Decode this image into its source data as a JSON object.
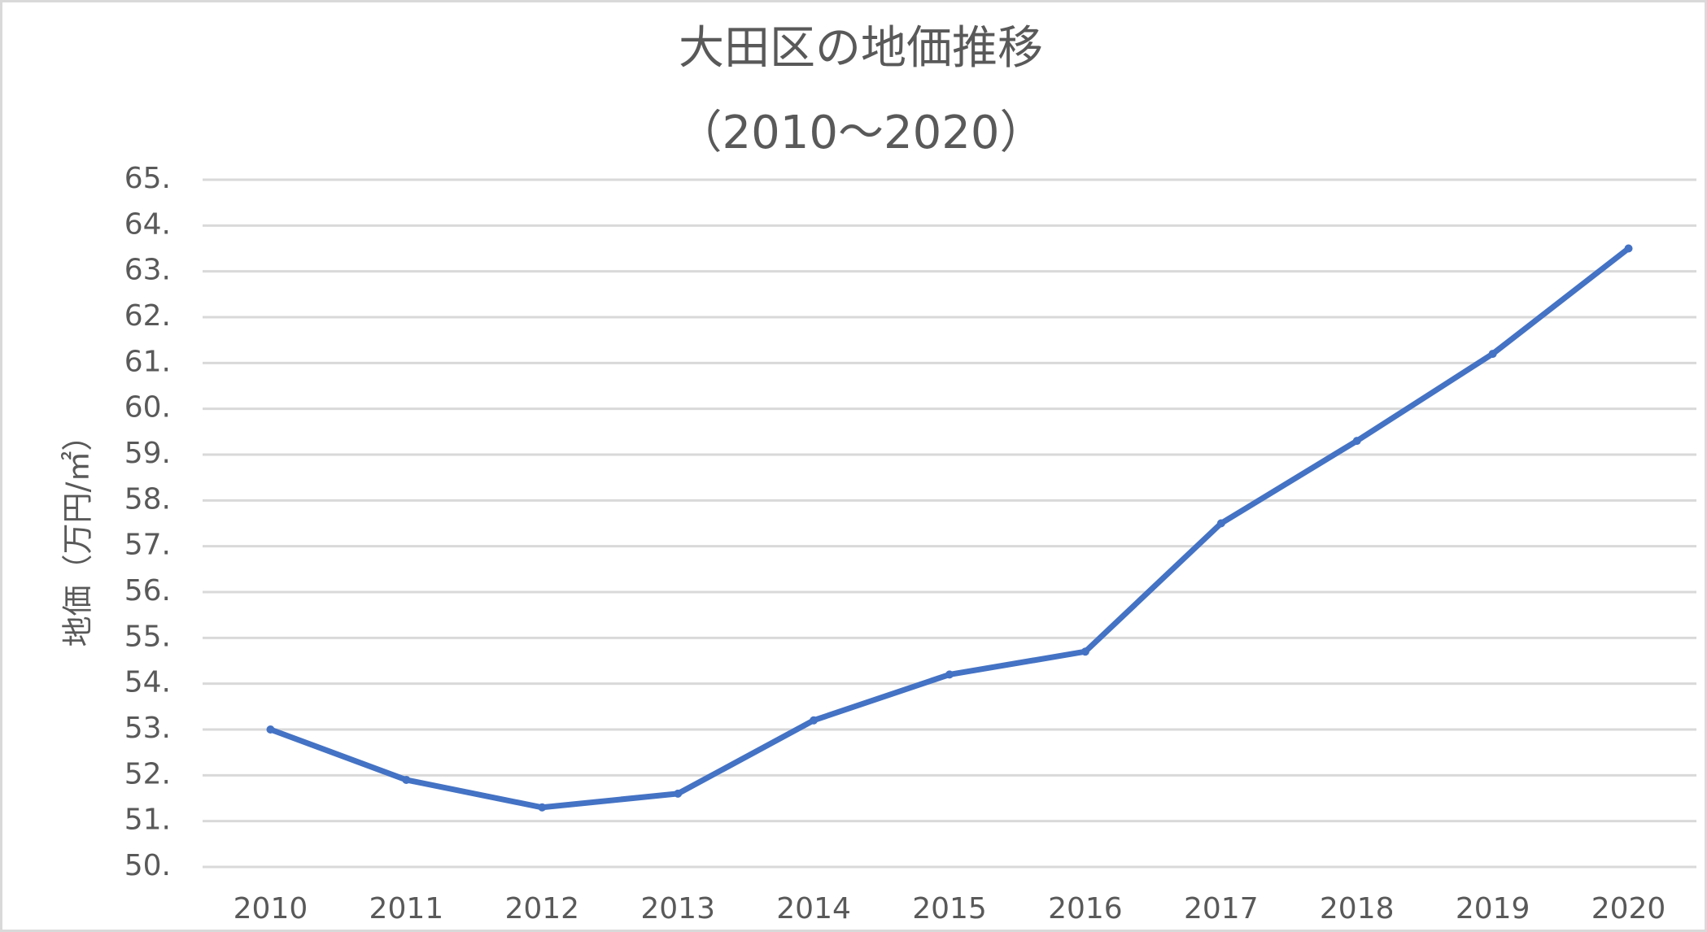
{
  "chart_data": {
    "type": "line",
    "title": "大田区の地価推移",
    "subtitle": "（2010～2020）",
    "y_label": "地価（万円/㎡）",
    "categories": [
      "2010",
      "2011",
      "2012",
      "2013",
      "2014",
      "2015",
      "2016",
      "2017",
      "2018",
      "2019",
      "2020"
    ],
    "values": [
      53.0,
      51.9,
      51.3,
      51.6,
      53.2,
      54.2,
      54.7,
      57.5,
      59.3,
      61.2,
      63.5
    ],
    "color": "#4472c4",
    "ylim": [
      50,
      65
    ],
    "yticks": [
      {
        "value": 50,
        "label": "50."
      },
      {
        "value": 51,
        "label": "51."
      },
      {
        "value": 52,
        "label": "52."
      },
      {
        "value": 53,
        "label": "53."
      },
      {
        "value": 54,
        "label": "54."
      },
      {
        "value": 55,
        "label": "55."
      },
      {
        "value": 56,
        "label": "56."
      },
      {
        "value": 57,
        "label": "57."
      },
      {
        "value": 58,
        "label": "58."
      },
      {
        "value": 59,
        "label": "59."
      },
      {
        "value": 60,
        "label": "60."
      },
      {
        "value": 61,
        "label": "61."
      },
      {
        "value": 62,
        "label": "62."
      },
      {
        "value": 63,
        "label": "63."
      },
      {
        "value": 64,
        "label": "64."
      },
      {
        "value": 65,
        "label": "65."
      }
    ],
    "grid": true
  }
}
